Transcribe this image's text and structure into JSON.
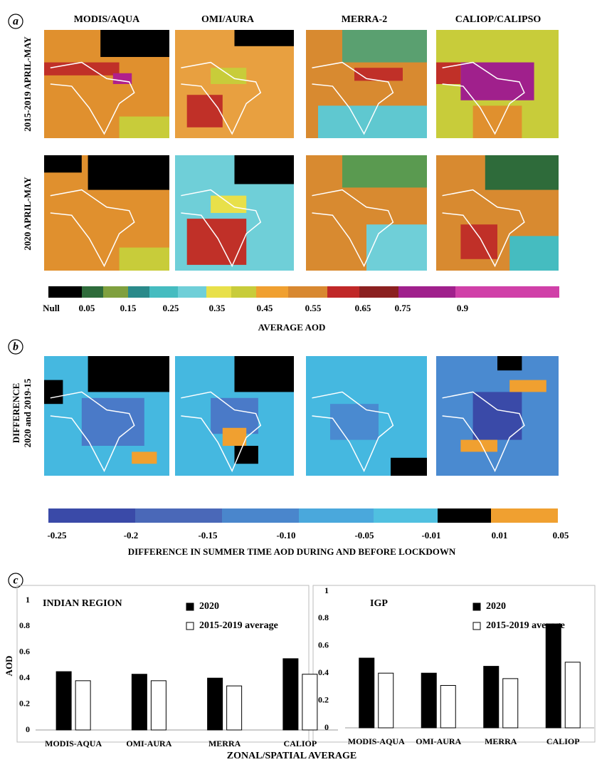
{
  "figure": {
    "panel_labels": [
      "a",
      "b",
      "c"
    ],
    "map_titles": [
      "MODIS/AQUA",
      "OMI/AURA",
      "MERRA-2",
      "CALIOP/CALIPSO"
    ],
    "row_labels": [
      "2015-2019 APRIL-MAY",
      "2020 APRIL-MAY"
    ],
    "colorbar_a": {
      "labels": [
        "Null",
        "0.05",
        "0.15",
        "0.25",
        "0.35",
        "0.45",
        "0.55",
        "0.65",
        "0.75",
        "0.9"
      ],
      "title": "AVERAGE AOD"
    },
    "difference_label": [
      "DIFFERENCE",
      "2020 and 2019-15"
    ],
    "colorbar_b": {
      "labels": [
        "-0.25",
        "-0.2",
        "-0.15",
        "-0.10",
        "-0.05",
        "-0.01",
        "0.01",
        "0.05"
      ],
      "title": "DIFFERENCE IN SUMMER TIME AOD DURING AND BEFORE LOCKDOWN"
    },
    "x_axis_label": "ZONAL/SPATIAL AVERAGE"
  },
  "chart_data": [
    {
      "type": "bar",
      "title": "INDIAN REGION",
      "ylabel": "AOD",
      "categories": [
        "MODIS-AQUA",
        "OMI-AURA",
        "MERRA",
        "CALIOP"
      ],
      "series": [
        {
          "name": "2020",
          "color": "#000000",
          "values": [
            0.45,
            0.43,
            0.4,
            0.55
          ]
        },
        {
          "name": "2015-2019 average",
          "color": "#ffffff",
          "values": [
            0.38,
            0.38,
            0.34,
            0.43
          ]
        }
      ],
      "ylim": [
        0,
        1
      ],
      "yticks": [
        0,
        0.2,
        0.4,
        0.6,
        0.8,
        1
      ]
    },
    {
      "type": "bar",
      "title": "IGP",
      "categories": [
        "MODIS-AQUA",
        "OMI-AURA",
        "MERRA",
        "CALIOP"
      ],
      "series": [
        {
          "name": "2020",
          "color": "#000000",
          "values": [
            0.51,
            0.4,
            0.45,
            0.76
          ]
        },
        {
          "name": "2015-2019 average",
          "color": "#ffffff",
          "values": [
            0.4,
            0.31,
            0.36,
            0.48
          ]
        }
      ],
      "ylim": [
        0,
        1
      ],
      "yticks": [
        0,
        0.2,
        0.4,
        0.6,
        0.8,
        1
      ]
    }
  ]
}
